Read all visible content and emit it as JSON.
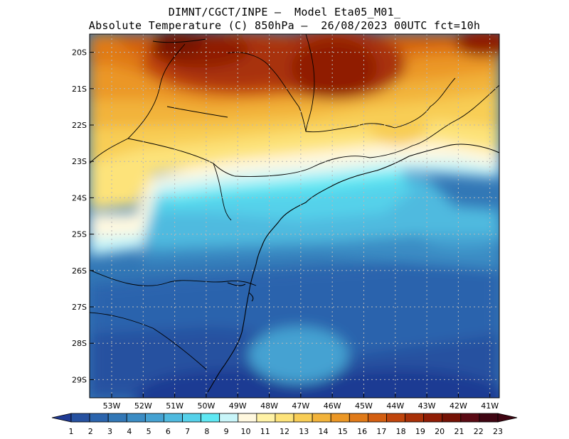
{
  "header": {
    "line1": "DIMNT/CGCT/INPE –  Model Eta05_M01_",
    "line2": "Absolute Temperature (C) 850hPa –  26/08/2023 00UTC fct=10h"
  },
  "map": {
    "lat_labels": [
      "20S",
      "21S",
      "22S",
      "23S",
      "24S",
      "25S",
      "26S",
      "27S",
      "28S",
      "29S"
    ],
    "lon_labels": [
      "53W",
      "52W",
      "51W",
      "50W",
      "49W",
      "48W",
      "47W",
      "46W",
      "45W",
      "44W",
      "43W",
      "42W",
      "41W"
    ],
    "lat_range": [
      -29.5,
      -19.5
    ],
    "lon_range": [
      -53.7,
      -40.7
    ]
  },
  "colorbar": {
    "levels": [
      "1",
      "2",
      "3",
      "4",
      "5",
      "6",
      "7",
      "8",
      "9",
      "10",
      "11",
      "12",
      "13",
      "14",
      "15",
      "16",
      "17",
      "18",
      "19",
      "20",
      "21",
      "22",
      "23"
    ],
    "colors": [
      "#1f3a93",
      "#2651a0",
      "#2b64ad",
      "#3277b6",
      "#3b8cc4",
      "#45a2d2",
      "#4fbadf",
      "#55d1ea",
      "#5fe8f3",
      "#c8f5f9",
      "#fff8df",
      "#fff2a6",
      "#fde37a",
      "#f8cd55",
      "#f2b33a",
      "#eb9725",
      "#e07a18",
      "#d35e10",
      "#c0450c",
      "#a83008",
      "#901d05",
      "#751205",
      "#5a0a14",
      "#3f0512"
    ]
  }
}
